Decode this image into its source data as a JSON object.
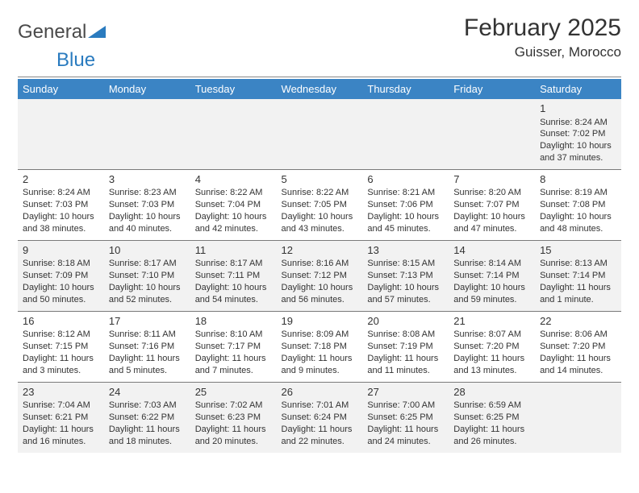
{
  "brand": {
    "part1": "General",
    "part2": "Blue"
  },
  "title": "February 2025",
  "location": "Guisser, Morocco",
  "colors": {
    "header_bg": "#3b84c4",
    "header_text": "#ffffff",
    "row_alt_bg": "#f2f2f2",
    "text": "#333333",
    "brand_blue": "#2a7bbf",
    "rule": "#888888"
  },
  "day_headers": [
    "Sunday",
    "Monday",
    "Tuesday",
    "Wednesday",
    "Thursday",
    "Friday",
    "Saturday"
  ],
  "weeks": [
    [
      null,
      null,
      null,
      null,
      null,
      null,
      {
        "n": "1",
        "sr": "Sunrise: 8:24 AM",
        "ss": "Sunset: 7:02 PM",
        "dl": "Daylight: 10 hours and 37 minutes."
      }
    ],
    [
      {
        "n": "2",
        "sr": "Sunrise: 8:24 AM",
        "ss": "Sunset: 7:03 PM",
        "dl": "Daylight: 10 hours and 38 minutes."
      },
      {
        "n": "3",
        "sr": "Sunrise: 8:23 AM",
        "ss": "Sunset: 7:03 PM",
        "dl": "Daylight: 10 hours and 40 minutes."
      },
      {
        "n": "4",
        "sr": "Sunrise: 8:22 AM",
        "ss": "Sunset: 7:04 PM",
        "dl": "Daylight: 10 hours and 42 minutes."
      },
      {
        "n": "5",
        "sr": "Sunrise: 8:22 AM",
        "ss": "Sunset: 7:05 PM",
        "dl": "Daylight: 10 hours and 43 minutes."
      },
      {
        "n": "6",
        "sr": "Sunrise: 8:21 AM",
        "ss": "Sunset: 7:06 PM",
        "dl": "Daylight: 10 hours and 45 minutes."
      },
      {
        "n": "7",
        "sr": "Sunrise: 8:20 AM",
        "ss": "Sunset: 7:07 PM",
        "dl": "Daylight: 10 hours and 47 minutes."
      },
      {
        "n": "8",
        "sr": "Sunrise: 8:19 AM",
        "ss": "Sunset: 7:08 PM",
        "dl": "Daylight: 10 hours and 48 minutes."
      }
    ],
    [
      {
        "n": "9",
        "sr": "Sunrise: 8:18 AM",
        "ss": "Sunset: 7:09 PM",
        "dl": "Daylight: 10 hours and 50 minutes."
      },
      {
        "n": "10",
        "sr": "Sunrise: 8:17 AM",
        "ss": "Sunset: 7:10 PM",
        "dl": "Daylight: 10 hours and 52 minutes."
      },
      {
        "n": "11",
        "sr": "Sunrise: 8:17 AM",
        "ss": "Sunset: 7:11 PM",
        "dl": "Daylight: 10 hours and 54 minutes."
      },
      {
        "n": "12",
        "sr": "Sunrise: 8:16 AM",
        "ss": "Sunset: 7:12 PM",
        "dl": "Daylight: 10 hours and 56 minutes."
      },
      {
        "n": "13",
        "sr": "Sunrise: 8:15 AM",
        "ss": "Sunset: 7:13 PM",
        "dl": "Daylight: 10 hours and 57 minutes."
      },
      {
        "n": "14",
        "sr": "Sunrise: 8:14 AM",
        "ss": "Sunset: 7:14 PM",
        "dl": "Daylight: 10 hours and 59 minutes."
      },
      {
        "n": "15",
        "sr": "Sunrise: 8:13 AM",
        "ss": "Sunset: 7:14 PM",
        "dl": "Daylight: 11 hours and 1 minute."
      }
    ],
    [
      {
        "n": "16",
        "sr": "Sunrise: 8:12 AM",
        "ss": "Sunset: 7:15 PM",
        "dl": "Daylight: 11 hours and 3 minutes."
      },
      {
        "n": "17",
        "sr": "Sunrise: 8:11 AM",
        "ss": "Sunset: 7:16 PM",
        "dl": "Daylight: 11 hours and 5 minutes."
      },
      {
        "n": "18",
        "sr": "Sunrise: 8:10 AM",
        "ss": "Sunset: 7:17 PM",
        "dl": "Daylight: 11 hours and 7 minutes."
      },
      {
        "n": "19",
        "sr": "Sunrise: 8:09 AM",
        "ss": "Sunset: 7:18 PM",
        "dl": "Daylight: 11 hours and 9 minutes."
      },
      {
        "n": "20",
        "sr": "Sunrise: 8:08 AM",
        "ss": "Sunset: 7:19 PM",
        "dl": "Daylight: 11 hours and 11 minutes."
      },
      {
        "n": "21",
        "sr": "Sunrise: 8:07 AM",
        "ss": "Sunset: 7:20 PM",
        "dl": "Daylight: 11 hours and 13 minutes."
      },
      {
        "n": "22",
        "sr": "Sunrise: 8:06 AM",
        "ss": "Sunset: 7:20 PM",
        "dl": "Daylight: 11 hours and 14 minutes."
      }
    ],
    [
      {
        "n": "23",
        "sr": "Sunrise: 7:04 AM",
        "ss": "Sunset: 6:21 PM",
        "dl": "Daylight: 11 hours and 16 minutes."
      },
      {
        "n": "24",
        "sr": "Sunrise: 7:03 AM",
        "ss": "Sunset: 6:22 PM",
        "dl": "Daylight: 11 hours and 18 minutes."
      },
      {
        "n": "25",
        "sr": "Sunrise: 7:02 AM",
        "ss": "Sunset: 6:23 PM",
        "dl": "Daylight: 11 hours and 20 minutes."
      },
      {
        "n": "26",
        "sr": "Sunrise: 7:01 AM",
        "ss": "Sunset: 6:24 PM",
        "dl": "Daylight: 11 hours and 22 minutes."
      },
      {
        "n": "27",
        "sr": "Sunrise: 7:00 AM",
        "ss": "Sunset: 6:25 PM",
        "dl": "Daylight: 11 hours and 24 minutes."
      },
      {
        "n": "28",
        "sr": "Sunrise: 6:59 AM",
        "ss": "Sunset: 6:25 PM",
        "dl": "Daylight: 11 hours and 26 minutes."
      },
      null
    ]
  ]
}
